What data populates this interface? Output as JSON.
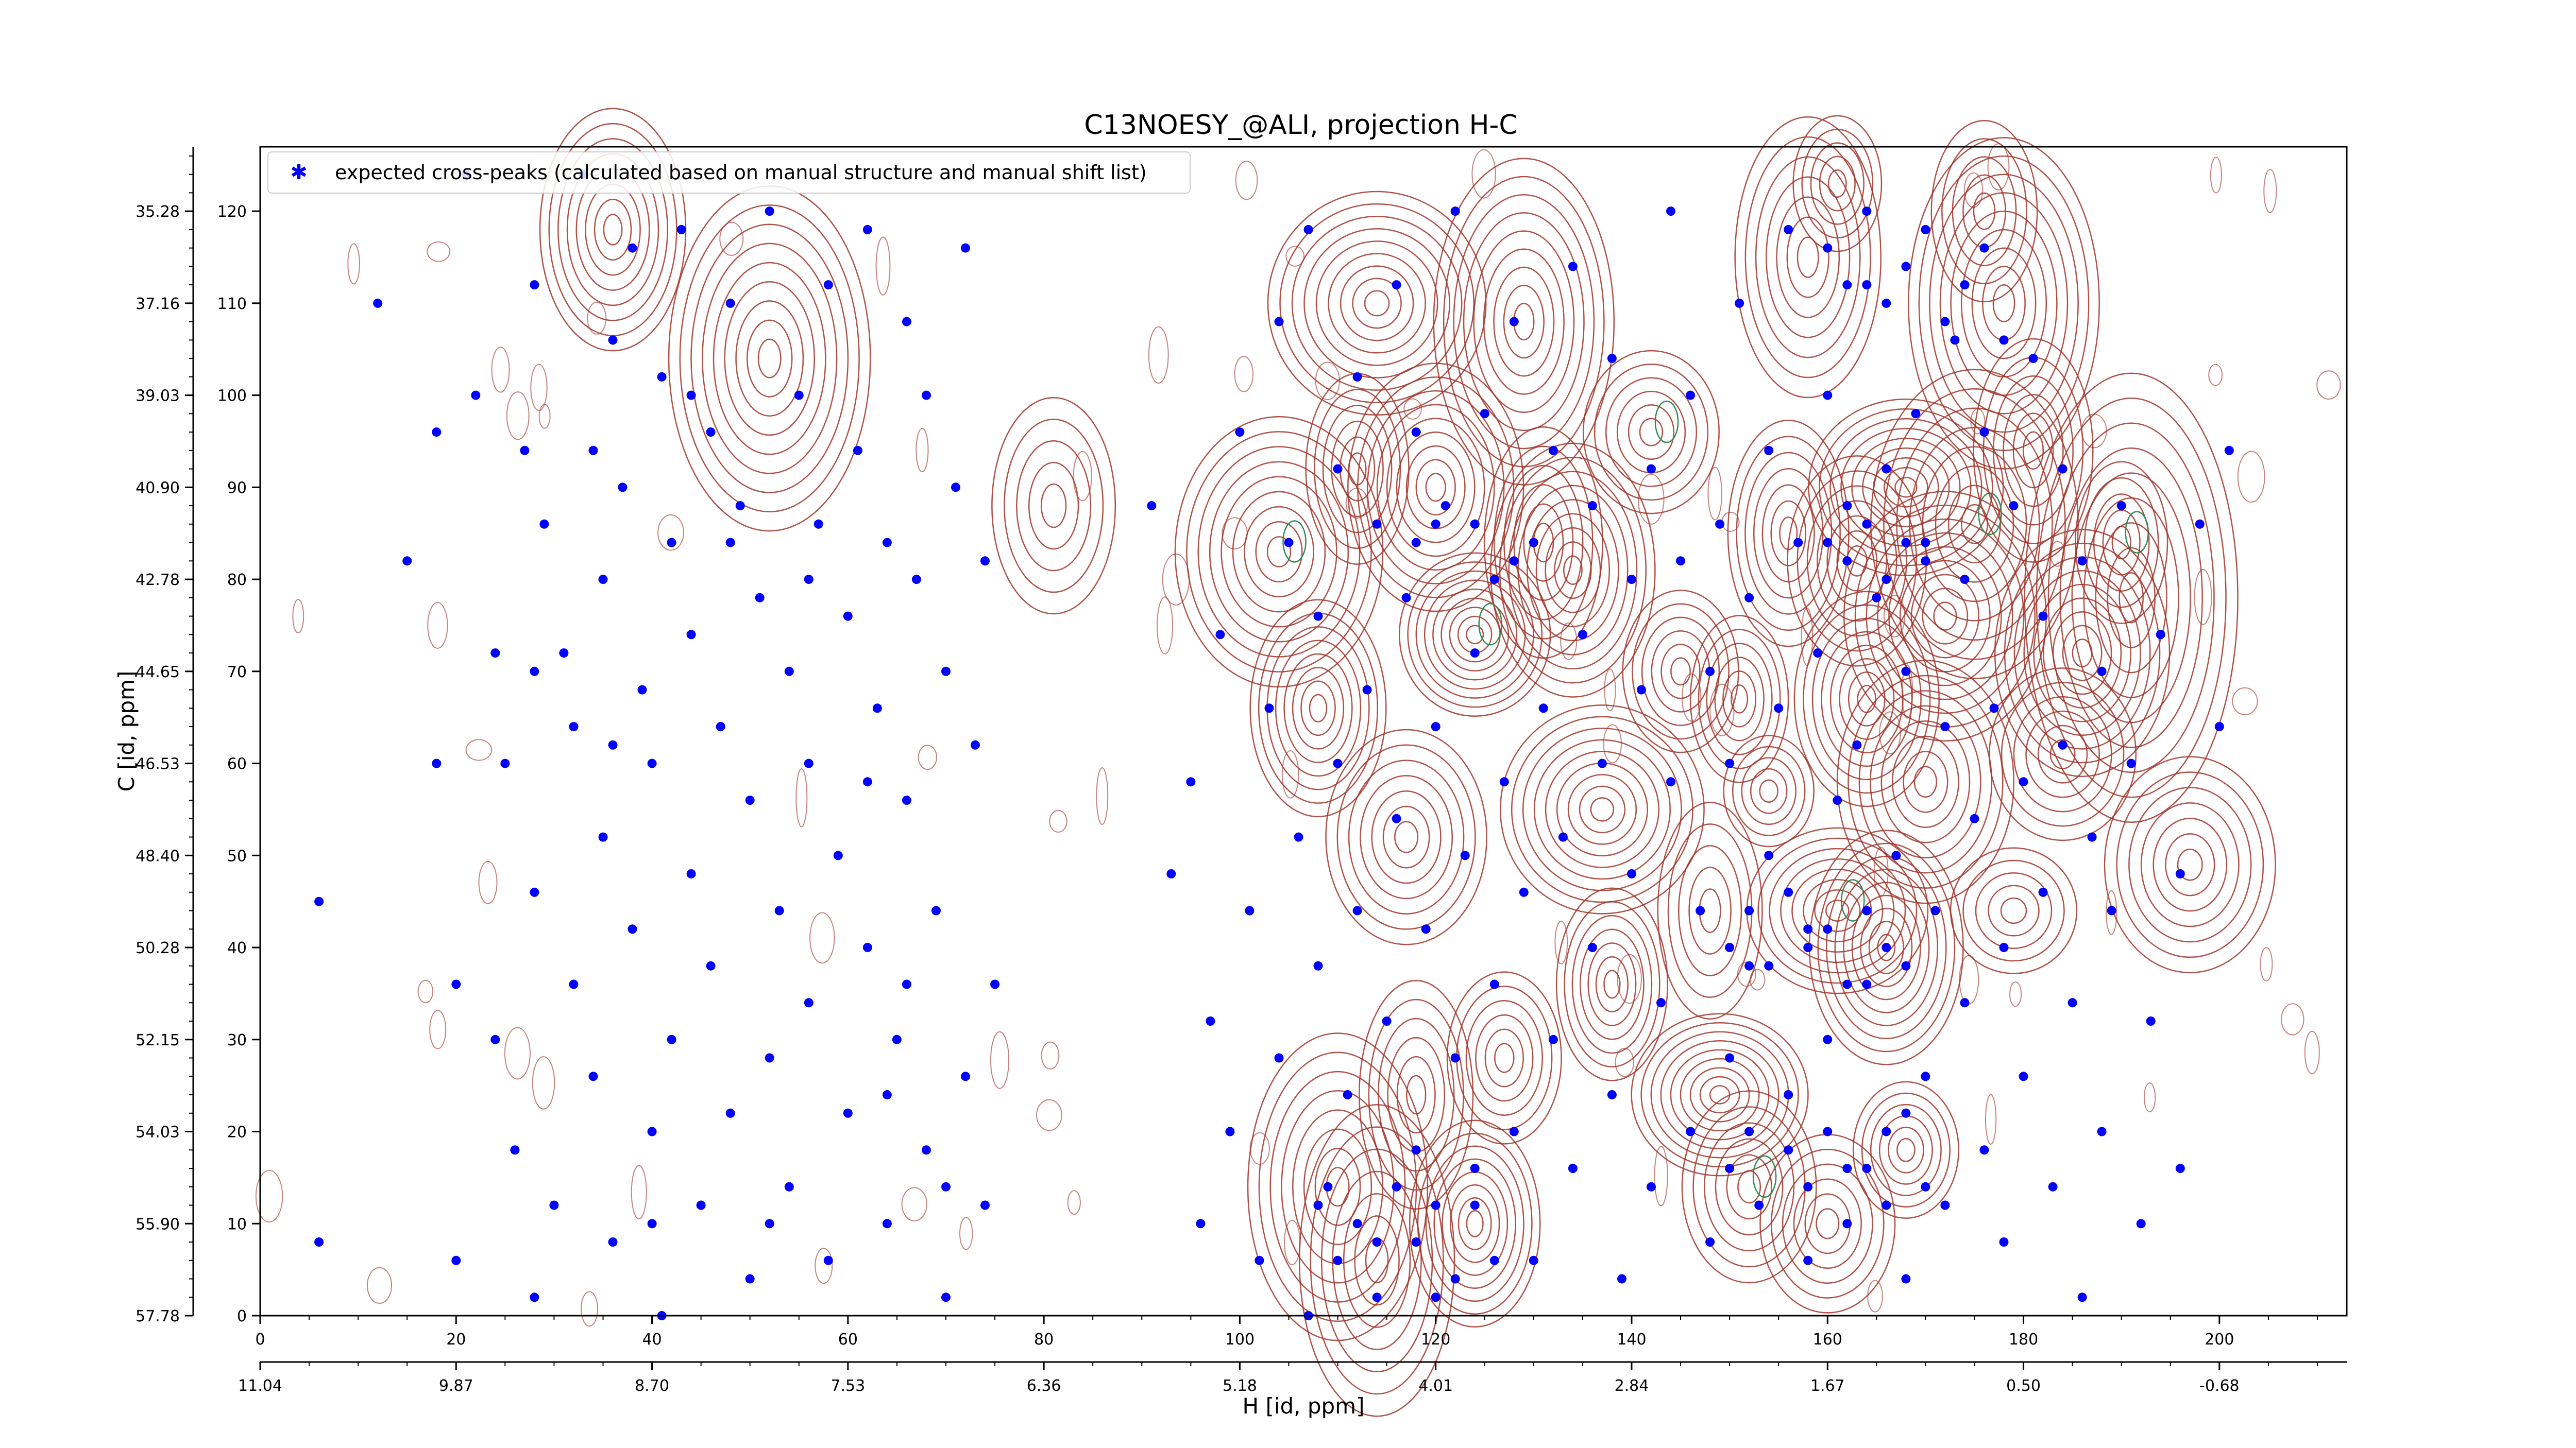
{
  "chart_data": {
    "type": "scatter",
    "title": "C13NOESY_@ALI, projection H-C",
    "xlabel": "H [id, ppm]",
    "ylabel": "C [id, ppm]",
    "xlim": [
      0,
      213
    ],
    "ylim": [
      0,
      127
    ],
    "x_ticks_index": [
      "0",
      "20",
      "40",
      "60",
      "80",
      "100",
      "120",
      "140",
      "160",
      "180",
      "200"
    ],
    "x_ticks_ppm": [
      "11.04",
      "9.87",
      "8.70",
      "7.53",
      "6.36",
      "5.18",
      "4.01",
      "2.84",
      "1.67",
      "0.50",
      "-0.68"
    ],
    "y_ticks_index": [
      "0",
      "10",
      "20",
      "30",
      "40",
      "50",
      "60",
      "70",
      "80",
      "90",
      "100",
      "110",
      "120"
    ],
    "y_ticks_ppm": [
      "57.78",
      "55.90",
      "54.03",
      "52.15",
      "50.28",
      "48.40",
      "46.53",
      "44.65",
      "42.78",
      "40.90",
      "39.03",
      "37.16",
      "35.28"
    ],
    "legend": {
      "placement": "top-left",
      "entries": [
        "expected cross-peaks (calculated based on manual structure and manual shift list)"
      ]
    },
    "series_colors": {
      "expected": "#0000ff",
      "positive_contours": "#a0342a",
      "negative_contours": "#2e8b57"
    },
    "contour_peaks": [
      [
        36,
        118
      ],
      [
        52,
        104
      ],
      [
        81,
        88
      ],
      [
        104,
        83
      ],
      [
        108,
        66
      ],
      [
        112,
        92
      ],
      [
        114,
        110
      ],
      [
        117,
        52
      ],
      [
        118,
        24
      ],
      [
        120,
        90
      ],
      [
        124,
        74
      ],
      [
        127,
        28
      ],
      [
        129,
        108
      ],
      [
        131,
        84
      ],
      [
        134,
        81
      ],
      [
        137,
        55
      ],
      [
        138,
        36
      ],
      [
        142,
        96
      ],
      [
        145,
        70
      ],
      [
        149,
        24
      ],
      [
        151,
        67
      ],
      [
        154,
        57
      ],
      [
        156,
        85
      ],
      [
        158,
        115
      ],
      [
        161,
        44
      ],
      [
        163,
        82
      ],
      [
        164,
        67
      ],
      [
        166,
        40
      ],
      [
        168,
        90
      ],
      [
        170,
        58
      ],
      [
        172,
        76
      ],
      [
        175,
        86
      ],
      [
        176,
        120
      ],
      [
        178,
        110
      ],
      [
        179,
        44
      ],
      [
        181,
        94
      ],
      [
        184,
        61
      ],
      [
        186,
        72
      ],
      [
        190,
        84
      ],
      [
        191,
        78
      ],
      [
        197,
        49
      ],
      [
        161,
        123
      ],
      [
        110,
        14
      ],
      [
        114,
        6
      ],
      [
        124,
        10
      ],
      [
        152,
        14
      ],
      [
        160,
        10
      ],
      [
        168,
        18
      ],
      [
        148,
        44
      ]
    ],
    "expected_cross_peaks": [
      [
        6,
        45
      ],
      [
        6,
        8
      ],
      [
        12,
        110
      ],
      [
        15,
        82
      ],
      [
        18,
        96
      ],
      [
        18,
        60
      ],
      [
        20,
        36
      ],
      [
        20,
        6
      ],
      [
        21,
        124
      ],
      [
        22,
        100
      ],
      [
        24,
        72
      ],
      [
        24,
        30
      ],
      [
        25,
        60
      ],
      [
        26,
        18
      ],
      [
        27,
        94
      ],
      [
        28,
        46
      ],
      [
        28,
        112
      ],
      [
        28,
        2
      ],
      [
        29,
        86
      ],
      [
        30,
        12
      ],
      [
        31,
        72
      ],
      [
        32,
        64
      ],
      [
        32,
        36
      ],
      [
        33,
        124
      ],
      [
        34,
        26
      ],
      [
        35,
        80
      ],
      [
        35,
        52
      ],
      [
        36,
        106
      ],
      [
        36,
        8
      ],
      [
        37,
        90
      ],
      [
        38,
        42
      ],
      [
        38,
        116
      ],
      [
        39,
        68
      ],
      [
        40,
        20
      ],
      [
        40,
        60
      ],
      [
        41,
        102
      ],
      [
        41,
        0
      ],
      [
        42,
        84
      ],
      [
        42,
        30
      ],
      [
        43,
        118
      ],
      [
        44,
        48
      ],
      [
        44,
        74
      ],
      [
        45,
        12
      ],
      [
        46,
        96
      ],
      [
        46,
        38
      ],
      [
        47,
        64
      ],
      [
        48,
        110
      ],
      [
        48,
        22
      ],
      [
        49,
        88
      ],
      [
        50,
        56
      ],
      [
        50,
        4
      ],
      [
        51,
        78
      ],
      [
        52,
        28
      ],
      [
        52,
        120
      ],
      [
        53,
        44
      ],
      [
        54,
        70
      ],
      [
        54,
        14
      ],
      [
        55,
        100
      ],
      [
        56,
        60
      ],
      [
        56,
        34
      ],
      [
        57,
        86
      ],
      [
        58,
        6
      ],
      [
        58,
        112
      ],
      [
        59,
        50
      ],
      [
        60,
        76
      ],
      [
        60,
        22
      ],
      [
        61,
        94
      ],
      [
        62,
        40
      ],
      [
        62,
        118
      ],
      [
        63,
        66
      ],
      [
        64,
        10
      ],
      [
        64,
        84
      ],
      [
        65,
        30
      ],
      [
        66,
        108
      ],
      [
        66,
        56
      ],
      [
        67,
        80
      ],
      [
        68,
        18
      ],
      [
        68,
        100
      ],
      [
        69,
        44
      ],
      [
        70,
        70
      ],
      [
        70,
        2
      ],
      [
        71,
        90
      ],
      [
        72,
        26
      ],
      [
        72,
        116
      ],
      [
        73,
        62
      ],
      [
        74,
        82
      ],
      [
        74,
        12
      ],
      [
        75,
        36
      ],
      [
        64,
        24
      ],
      [
        40,
        10
      ],
      [
        48,
        84
      ],
      [
        34,
        94
      ],
      [
        52,
        10
      ],
      [
        62,
        58
      ],
      [
        28,
        70
      ],
      [
        44,
        100
      ],
      [
        70,
        14
      ],
      [
        36,
        62
      ],
      [
        56,
        80
      ],
      [
        66,
        36
      ],
      [
        91,
        88
      ],
      [
        93,
        48
      ],
      [
        95,
        58
      ],
      [
        96,
        10
      ],
      [
        97,
        32
      ],
      [
        98,
        74
      ],
      [
        99,
        20
      ],
      [
        100,
        96
      ],
      [
        101,
        44
      ],
      [
        102,
        6
      ],
      [
        103,
        66
      ],
      [
        104,
        108
      ],
      [
        104,
        28
      ],
      [
        105,
        84
      ],
      [
        106,
        52
      ],
      [
        107,
        0
      ],
      [
        107,
        118
      ],
      [
        108,
        38
      ],
      [
        108,
        76
      ],
      [
        109,
        14
      ],
      [
        110,
        92
      ],
      [
        110,
        60
      ],
      [
        111,
        24
      ],
      [
        112,
        102
      ],
      [
        112,
        44
      ],
      [
        113,
        68
      ],
      [
        114,
        8
      ],
      [
        114,
        86
      ],
      [
        115,
        32
      ],
      [
        116,
        112
      ],
      [
        116,
        54
      ],
      [
        117,
        78
      ],
      [
        118,
        18
      ],
      [
        118,
        96
      ],
      [
        119,
        42
      ],
      [
        120,
        64
      ],
      [
        120,
        2
      ],
      [
        121,
        88
      ],
      [
        122,
        28
      ],
      [
        122,
        120
      ],
      [
        123,
        50
      ],
      [
        124,
        72
      ],
      [
        124,
        12
      ],
      [
        125,
        98
      ],
      [
        126,
        36
      ],
      [
        126,
        80
      ],
      [
        127,
        58
      ],
      [
        128,
        20
      ],
      [
        128,
        108
      ],
      [
        129,
        46
      ],
      [
        130,
        84
      ],
      [
        130,
        6
      ],
      [
        131,
        66
      ],
      [
        132,
        30
      ],
      [
        132,
        94
      ],
      [
        133,
        52
      ],
      [
        134,
        16
      ],
      [
        134,
        114
      ],
      [
        135,
        74
      ],
      [
        136,
        40
      ],
      [
        136,
        88
      ],
      [
        137,
        60
      ],
      [
        138,
        24
      ],
      [
        138,
        104
      ],
      [
        139,
        4
      ],
      [
        140,
        80
      ],
      [
        140,
        48
      ],
      [
        141,
        68
      ],
      [
        142,
        14
      ],
      [
        142,
        92
      ],
      [
        143,
        34
      ],
      [
        144,
        58
      ],
      [
        144,
        120
      ],
      [
        145,
        82
      ],
      [
        146,
        20
      ],
      [
        146,
        100
      ],
      [
        147,
        44
      ],
      [
        148,
        70
      ],
      [
        148,
        8
      ],
      [
        149,
        86
      ],
      [
        150,
        28
      ],
      [
        150,
        60
      ],
      [
        151,
        110
      ],
      [
        152,
        38
      ],
      [
        152,
        78
      ],
      [
        153,
        12
      ],
      [
        154,
        94
      ],
      [
        154,
        50
      ],
      [
        155,
        66
      ],
      [
        156,
        24
      ],
      [
        156,
        118
      ],
      [
        157,
        84
      ],
      [
        158,
        42
      ],
      [
        158,
        6
      ],
      [
        159,
        72
      ],
      [
        160,
        30
      ],
      [
        160,
        100
      ],
      [
        161,
        56
      ],
      [
        162,
        16
      ],
      [
        162,
        88
      ],
      [
        163,
        62
      ],
      [
        164,
        36
      ],
      [
        164,
        112
      ],
      [
        165,
        78
      ],
      [
        166,
        20
      ],
      [
        166,
        92
      ],
      [
        167,
        50
      ],
      [
        168,
        4
      ],
      [
        168,
        70
      ],
      [
        169,
        98
      ],
      [
        170,
        26
      ],
      [
        170,
        84
      ],
      [
        171,
        44
      ],
      [
        172,
        64
      ],
      [
        172,
        12
      ],
      [
        173,
        106
      ],
      [
        174,
        34
      ],
      [
        174,
        80
      ],
      [
        175,
        54
      ],
      [
        176,
        18
      ],
      [
        176,
        96
      ],
      [
        177,
        66
      ],
      [
        178,
        40
      ],
      [
        178,
        8
      ],
      [
        179,
        88
      ],
      [
        180,
        58
      ],
      [
        180,
        26
      ],
      [
        181,
        104
      ],
      [
        182,
        76
      ],
      [
        182,
        46
      ],
      [
        183,
        14
      ],
      [
        184,
        92
      ],
      [
        184,
        62
      ],
      [
        185,
        34
      ],
      [
        186,
        82
      ],
      [
        186,
        2
      ],
      [
        187,
        52
      ],
      [
        188,
        20
      ],
      [
        188,
        70
      ],
      [
        189,
        44
      ],
      [
        190,
        88
      ],
      [
        191,
        60
      ],
      [
        192,
        10
      ],
      [
        193,
        32
      ],
      [
        194,
        74
      ],
      [
        196,
        48
      ],
      [
        196,
        16
      ],
      [
        198,
        86
      ],
      [
        200,
        64
      ],
      [
        201,
        94
      ],
      [
        118,
        84
      ],
      [
        120,
        86
      ],
      [
        124,
        86
      ],
      [
        128,
        82
      ],
      [
        160,
        84
      ],
      [
        162,
        82
      ],
      [
        164,
        86
      ],
      [
        166,
        80
      ],
      [
        168,
        84
      ],
      [
        170,
        82
      ],
      [
        156,
        18
      ],
      [
        158,
        14
      ],
      [
        160,
        20
      ],
      [
        162,
        10
      ],
      [
        164,
        16
      ],
      [
        166,
        12
      ],
      [
        168,
        22
      ],
      [
        170,
        14
      ],
      [
        150,
        16
      ],
      [
        152,
        20
      ],
      [
        108,
        12
      ],
      [
        110,
        6
      ],
      [
        112,
        10
      ],
      [
        114,
        2
      ],
      [
        116,
        14
      ],
      [
        118,
        8
      ],
      [
        120,
        12
      ],
      [
        122,
        4
      ],
      [
        124,
        16
      ],
      [
        126,
        6
      ],
      [
        150,
        40
      ],
      [
        152,
        44
      ],
      [
        154,
        38
      ],
      [
        156,
        46
      ],
      [
        158,
        40
      ],
      [
        160,
        42
      ],
      [
        162,
        36
      ],
      [
        164,
        44
      ],
      [
        166,
        40
      ],
      [
        168,
        38
      ],
      [
        160,
        116
      ],
      [
        162,
        112
      ],
      [
        164,
        120
      ],
      [
        166,
        110
      ],
      [
        168,
        114
      ],
      [
        170,
        118
      ],
      [
        172,
        108
      ],
      [
        174,
        112
      ],
      [
        176,
        116
      ],
      [
        178,
        106
      ]
    ]
  }
}
